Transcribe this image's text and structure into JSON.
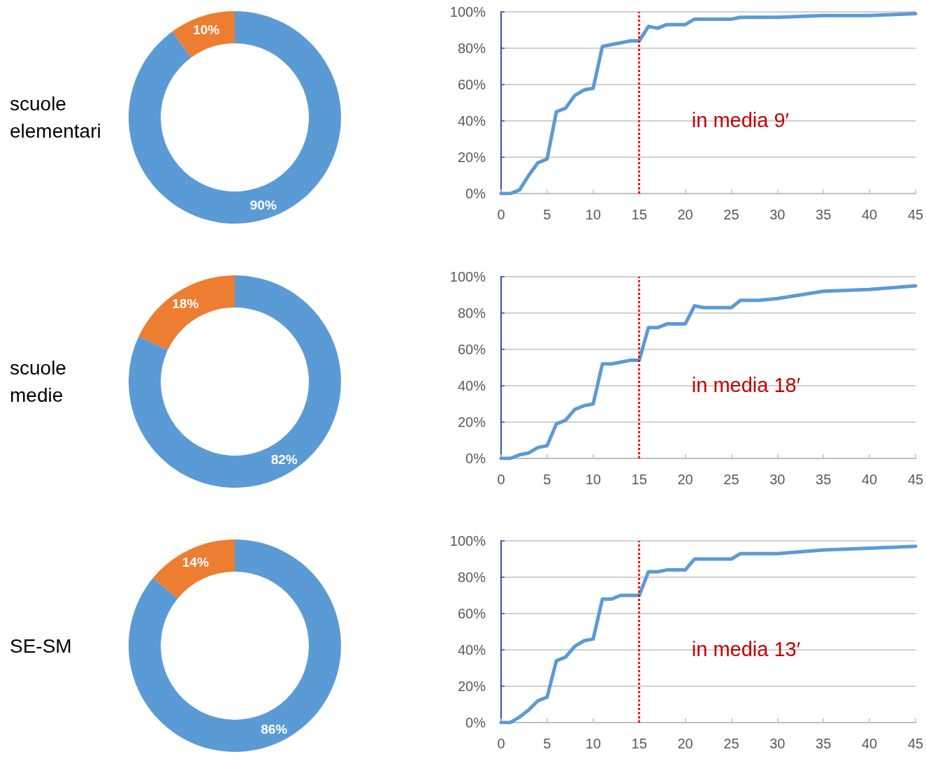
{
  "chart_data": [
    {
      "type": "donut",
      "title": "scuole elementari",
      "categories": [
        null,
        null
      ],
      "values": [
        90,
        10
      ],
      "colors": [
        "#5b9bd5",
        "#ed7d31"
      ],
      "value_labels": [
        "90%",
        "10%"
      ]
    },
    {
      "type": "line",
      "x": [
        0,
        1,
        2,
        3,
        4,
        5,
        6,
        7,
        8,
        9,
        10,
        11,
        12,
        13,
        14,
        15,
        16,
        17,
        18,
        19,
        20,
        21,
        22,
        25,
        26,
        30,
        35,
        40,
        45
      ],
      "values": [
        0,
        0,
        2,
        10,
        17,
        19,
        45,
        47,
        54,
        57,
        58,
        81,
        82,
        83,
        84,
        84,
        92,
        91,
        93,
        93,
        93,
        96,
        96,
        96,
        97,
        97,
        98,
        98,
        99
      ],
      "color": "#5b9bd5",
      "xlim": [
        0,
        45
      ],
      "xticks": [
        0,
        5,
        10,
        15,
        20,
        25,
        30,
        35,
        40,
        45
      ],
      "ylim": [
        0,
        100
      ],
      "yticks": [
        {
          "value": 0,
          "label": "0%"
        },
        {
          "value": 20,
          "label": "20%"
        },
        {
          "value": 40,
          "label": "40%"
        },
        {
          "value": 60,
          "label": "60%"
        },
        {
          "value": 80,
          "label": "80%"
        },
        {
          "value": 100,
          "label": "100%"
        }
      ],
      "grid": "y",
      "ref_lines": [
        {
          "axis": "x",
          "value": 15,
          "color": "#ff0000",
          "line_style": "dotted"
        }
      ],
      "annotations": [
        "in media 9′"
      ]
    },
    {
      "type": "donut",
      "title": "scuole medie",
      "categories": [
        null,
        null
      ],
      "values": [
        82,
        18
      ],
      "colors": [
        "#5b9bd5",
        "#ed7d31"
      ],
      "value_labels": [
        "82%",
        "18%"
      ]
    },
    {
      "type": "line",
      "x": [
        0,
        1,
        2,
        3,
        4,
        5,
        6,
        7,
        8,
        9,
        10,
        11,
        12,
        13,
        14,
        15,
        16,
        17,
        18,
        19,
        20,
        21,
        22,
        25,
        26,
        28,
        30,
        35,
        40,
        45
      ],
      "values": [
        0,
        0,
        2,
        3,
        6,
        7,
        19,
        21,
        27,
        29,
        30,
        52,
        52,
        53,
        54,
        54,
        72,
        72,
        74,
        74,
        74,
        84,
        83,
        83,
        87,
        87,
        88,
        92,
        93,
        95
      ],
      "color": "#5b9bd5",
      "xlim": [
        0,
        45
      ],
      "xticks": [
        0,
        5,
        10,
        15,
        20,
        25,
        30,
        35,
        40,
        45
      ],
      "ylim": [
        0,
        100
      ],
      "yticks": [
        {
          "value": 0,
          "label": "0%"
        },
        {
          "value": 20,
          "label": "20%"
        },
        {
          "value": 40,
          "label": "40%"
        },
        {
          "value": 60,
          "label": "60%"
        },
        {
          "value": 80,
          "label": "80%"
        },
        {
          "value": 100,
          "label": "100%"
        }
      ],
      "grid": "y",
      "ref_lines": [
        {
          "axis": "x",
          "value": 15,
          "color": "#ff0000",
          "line_style": "dotted"
        }
      ],
      "annotations": [
        "in media 18′"
      ]
    },
    {
      "type": "donut",
      "title": "SE-SM",
      "categories": [
        null,
        null
      ],
      "values": [
        86,
        14
      ],
      "colors": [
        "#5b9bd5",
        "#ed7d31"
      ],
      "value_labels": [
        "86%",
        "14%"
      ]
    },
    {
      "type": "line",
      "x": [
        0,
        1,
        2,
        3,
        4,
        5,
        6,
        7,
        8,
        9,
        10,
        11,
        12,
        13,
        14,
        15,
        16,
        17,
        18,
        19,
        20,
        21,
        22,
        25,
        26,
        30,
        35,
        40,
        45
      ],
      "values": [
        0,
        0,
        3,
        7,
        12,
        14,
        34,
        36,
        42,
        45,
        46,
        68,
        68,
        70,
        70,
        70,
        83,
        83,
        84,
        84,
        84,
        90,
        90,
        90,
        93,
        93,
        95,
        96,
        97
      ],
      "color": "#5b9bd5",
      "xlim": [
        0,
        45
      ],
      "xticks": [
        0,
        5,
        10,
        15,
        20,
        25,
        30,
        35,
        40,
        45
      ],
      "ylim": [
        0,
        100
      ],
      "yticks": [
        {
          "value": 0,
          "label": "0%"
        },
        {
          "value": 20,
          "label": "20%"
        },
        {
          "value": 40,
          "label": "40%"
        },
        {
          "value": 60,
          "label": "60%"
        },
        {
          "value": 80,
          "label": "80%"
        },
        {
          "value": 100,
          "label": "100%"
        }
      ],
      "grid": "y",
      "ref_lines": [
        {
          "axis": "x",
          "value": 15,
          "color": "#ff0000",
          "line_style": "dotted"
        }
      ],
      "annotations": [
        "in media 13′"
      ]
    }
  ]
}
